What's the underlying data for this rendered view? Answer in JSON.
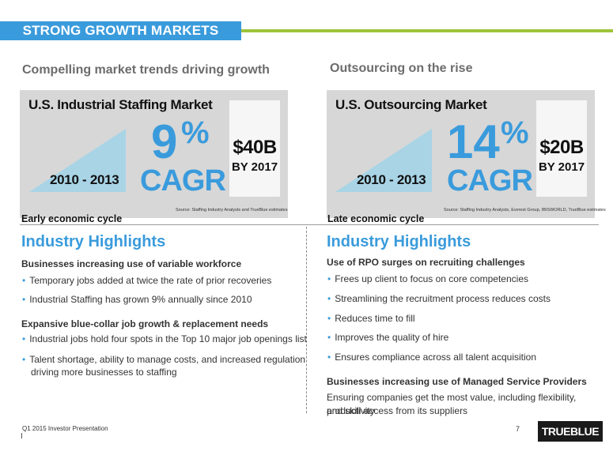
{
  "header": {
    "title": "STRONG GROWTH MARKETS"
  },
  "left": {
    "subtitle": "Compelling market trends driving growth",
    "panel": {
      "title": "U.S. Industrial Staffing Market",
      "years": "2010 - 2013",
      "percent": "9",
      "percent_sign": "%",
      "cagr": "CAGR",
      "box_value": "$40B",
      "box_by": "BY 2017",
      "source": "Source:  Staffing Industry Analysts and TrueBlue estimates"
    },
    "cycle": "Early economic cycle",
    "highlights_title": "Industry Highlights",
    "section1": {
      "heading": "Businesses increasing use of variable workforce",
      "bullets": [
        "Temporary jobs added at twice the rate of prior recoveries",
        "Industrial Staffing has grown 9% annually since 2010"
      ]
    },
    "section2": {
      "heading": "Expansive blue-collar job growth & replacement needs",
      "bullets": [
        "Industrial jobs hold four spots in the Top 10 major job openings list",
        "Talent shortage, ability to manage costs, and increased regulation",
        "driving more businesses to staffing"
      ]
    }
  },
  "right": {
    "subtitle": "Outsourcing on the rise",
    "panel": {
      "title": "U.S. Outsourcing Market",
      "years": "2010 - 2013",
      "percent": "14",
      "percent_sign": "%",
      "cagr": "CAGR",
      "box_value": "$20B",
      "box_by": "BY 2017",
      "source": "Source:  Staffing Industry Analysts, Everest Group, IBISWORLD, TrueBlue estimates"
    },
    "cycle": "Late economic cycle",
    "highlights_title": "Industry Highlights",
    "section1": {
      "heading": "Use of RPO surges on recruiting challenges",
      "bullets": [
        "Frees up client to focus on core competencies",
        "Streamlining the recruitment process reduces costs",
        "Reduces time to fill",
        "Improves the quality of hire",
        "Ensures compliance across all talent acquisition"
      ]
    },
    "section2": {
      "heading": "Businesses increasing use of Managed Service Providers",
      "text_line1": "Ensuring companies get the most value, including flexibility, productivity",
      "text_line2": "and skill access from its suppliers"
    }
  },
  "footer": {
    "presentation": "Q1 2015 Investor Presentation",
    "page_number": "7",
    "logo": "TRUEBLUE"
  },
  "colors": {
    "accent_blue": "#3a9bdc",
    "accent_green": "#9ec43a",
    "panel_gray": "#d7d7d7"
  }
}
